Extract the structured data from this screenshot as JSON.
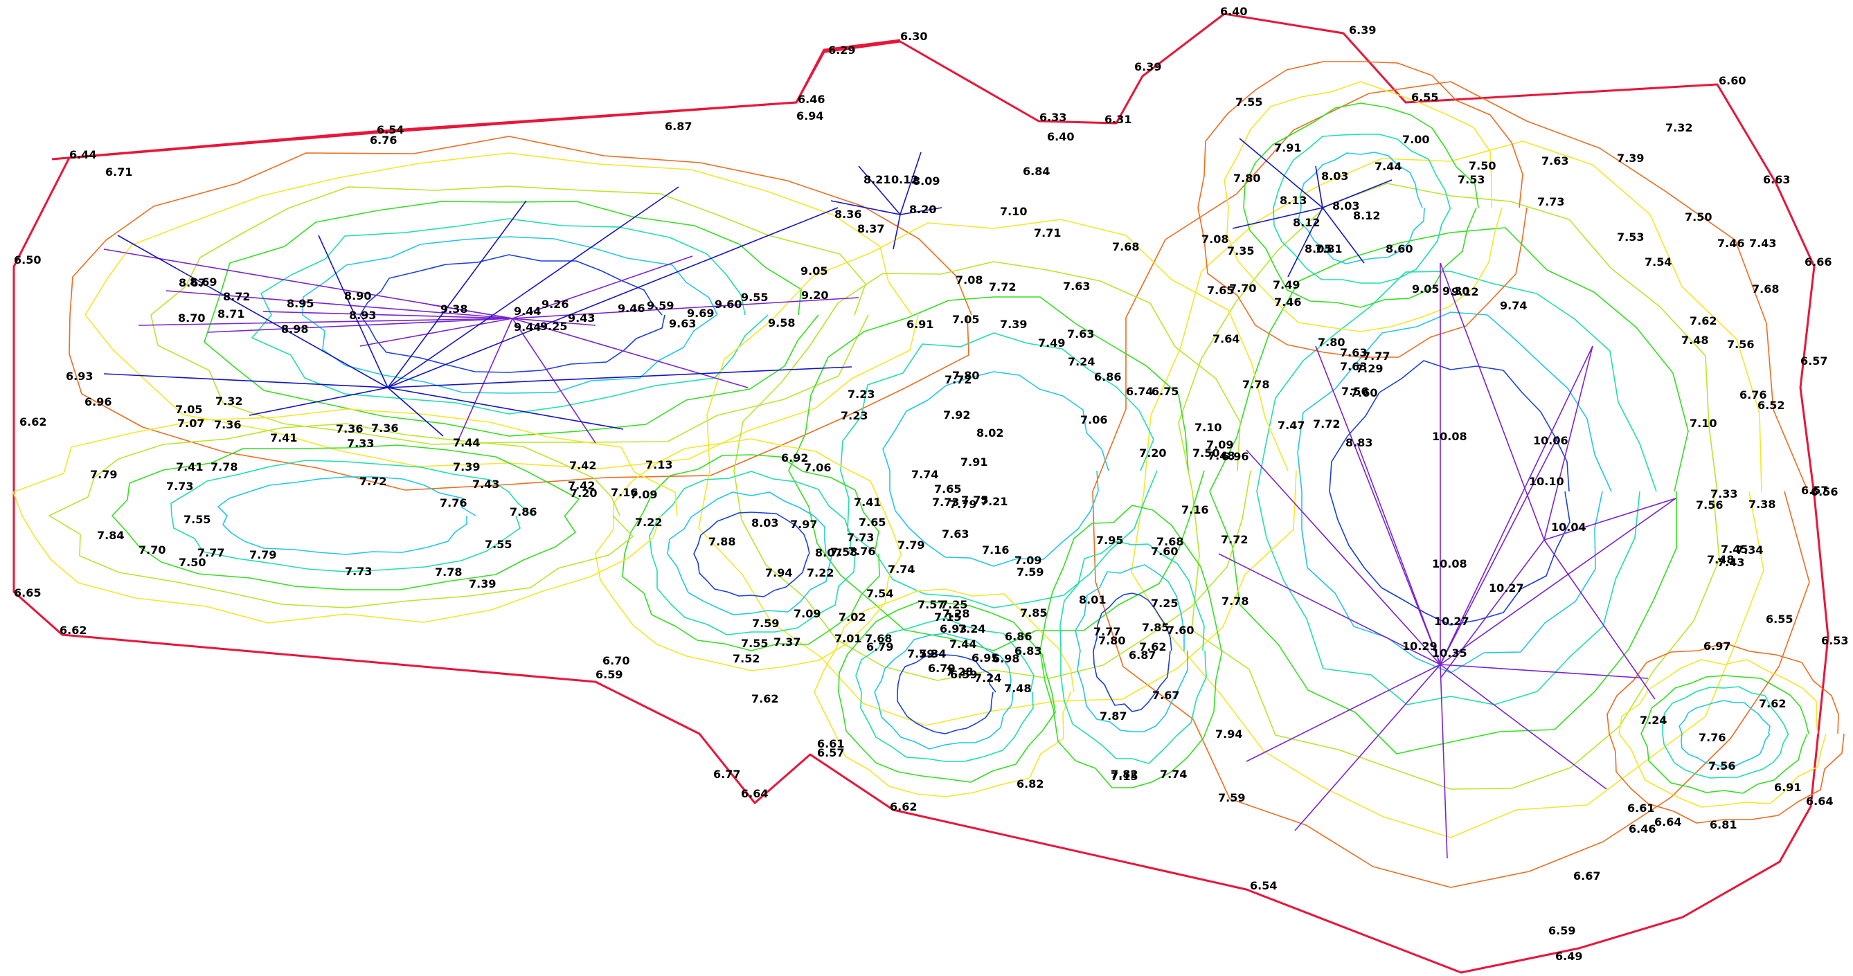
{
  "map": {
    "colors": {
      "boundary": "#e8163a",
      "red": "#ef2b2b",
      "orange": "#f26b1d",
      "yellow": "#f5e62a",
      "yellow_green": "#b8e62a",
      "green": "#33e01f",
      "teal": "#1ee0a8",
      "cyan": "#22c7e6",
      "blue": "#1a3fe0",
      "dark_blue": "#1414c8",
      "violet": "#7a22d6"
    },
    "height_labels": [
      "6.40",
      "6.39",
      "6.30",
      "6.29",
      "6.46",
      "6.94",
      "6.87",
      "6.54",
      "6.76",
      "6.44",
      "6.71",
      "6.50",
      "6.93",
      "6.96",
      "6.62",
      "6.65",
      "6.62",
      "6.59",
      "6.70",
      "6.77",
      "6.64",
      "6.61",
      "6.57",
      "6.62",
      "6.54",
      "6.82",
      "6.49",
      "6.59",
      "6.67",
      "6.46",
      "6.61",
      "6.64",
      "6.81",
      "6.91",
      "6.64",
      "6.53",
      "6.55",
      "6.57",
      "6.56",
      "6.52",
      "6.76",
      "6.57",
      "6.66",
      "6.63",
      "6.60",
      "6.55",
      "6.39",
      "6.33",
      "6.40",
      "6.31",
      "6.84",
      "7.55",
      "7.91",
      "7.80",
      "8.03",
      "8.13",
      "8.03",
      "8.12",
      "8.12",
      "7.44",
      "7.50",
      "7.53",
      "7.63",
      "7.39",
      "7.32",
      "7.00",
      "7.73",
      "7.53",
      "7.50",
      "7.46",
      "7.43",
      "7.54",
      "7.68",
      "7.62",
      "7.48",
      "7.56",
      "7.10",
      "7.33",
      "7.38",
      "7.56",
      "7.45",
      "7.34",
      "7.48",
      "7.43",
      "6.97",
      "7.62",
      "7.76",
      "7.56",
      "7.24",
      "8.21",
      "0.12",
      "8.09",
      "8.20",
      "8.36",
      "8.37",
      "7.10",
      "7.71",
      "7.68",
      "7.08",
      "7.35",
      "8.05",
      "7.81",
      "8.60",
      "9.05",
      "9.30",
      "9.12",
      "9.74",
      "10.08",
      "10.06",
      "10.10",
      "10.04",
      "10.08",
      "10.27",
      "10.27",
      "10.29",
      "10.35",
      "8.67",
      "8.69",
      "8.72",
      "8.70",
      "8.71",
      "8.95",
      "8.90",
      "8.93",
      "8.98",
      "9.38",
      "9.44",
      "9.44",
      "9.26",
      "9.25",
      "9.43",
      "9.46",
      "9.59",
      "9.69",
      "9.60",
      "9.55",
      "9.63",
      "9.58",
      "9.05",
      "9.20",
      "7.08",
      "6.91",
      "7.05",
      "7.39",
      "7.72",
      "7.63",
      "7.49",
      "7.63",
      "7.24",
      "6.86",
      "6.74",
      "6.75",
      "7.65",
      "7.70",
      "7.49",
      "7.46",
      "7.64",
      "7.80",
      "7.63",
      "7.63",
      "7.56",
      "7.77",
      "7.29",
      "7.78",
      "7.60",
      "7.72",
      "8.83",
      "7.47",
      "7.10",
      "7.09",
      "6.96",
      "7.48",
      "7.50",
      "7.20",
      "7.06",
      "7.05",
      "7.32",
      "7.07",
      "7.36",
      "7.41",
      "7.36",
      "7.36",
      "7.33",
      "7.44",
      "7.39",
      "7.41",
      "7.78",
      "7.79",
      "7.73",
      "7.55",
      "7.84",
      "7.70",
      "7.77",
      "7.50",
      "7.79",
      "7.72",
      "7.43",
      "7.76",
      "7.55",
      "7.78",
      "7.73",
      "7.39",
      "7.86",
      "7.42",
      "7.42",
      "7.20",
      "7.16",
      "7.09",
      "7.22",
      "7.13",
      "6.92",
      "7.06",
      "7.23",
      "7.23",
      "7.80",
      "7.72",
      "7.92",
      "8.02",
      "7.91",
      "7.74",
      "7.65",
      "7.73",
      "7.79",
      "7.75",
      "7.21",
      "7.79",
      "7.63",
      "7.73",
      "7.74",
      "7.41",
      "7.65",
      "8.03",
      "7.97",
      "7.88",
      "8.07",
      "7.58",
      "7.76",
      "7.94",
      "7.22",
      "7.54",
      "7.09",
      "7.01",
      "7.37",
      "7.68",
      "7.59",
      "7.55",
      "7.52",
      "7.62",
      "7.02",
      "6.79",
      "7.15",
      "7.28",
      "7.24",
      "6.93",
      "6.86",
      "6.83",
      "6.95",
      "6.98",
      "7.48",
      "7.44",
      "7.28",
      "7.34",
      "7.59",
      "7.57",
      "7.25",
      "7.16",
      "7.09",
      "7.59",
      "7.85",
      "8.01",
      "7.95",
      "7.68",
      "7.60",
      "7.72",
      "7.16",
      "7.78",
      "7.80",
      "7.85",
      "7.25",
      "7.60",
      "7.62",
      "7.77",
      "7.87",
      "7.67",
      "7.94",
      "7.82",
      "7.15",
      "7.74",
      "7.59",
      "6.87",
      "6.70",
      "6.59",
      "7.24"
    ]
  }
}
